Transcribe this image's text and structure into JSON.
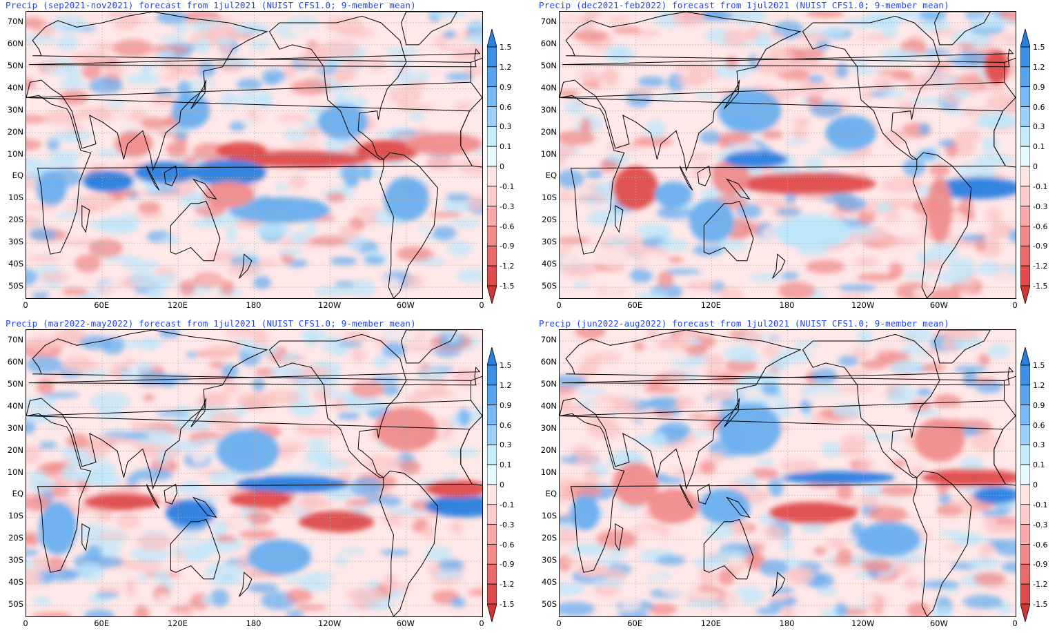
{
  "panels": [
    {
      "id": "son2021",
      "title": "Precip (sep2021-nov2021) forecast from 1jul2021 (NUIST CFS1.0; 9-member mean)"
    },
    {
      "id": "djf2022",
      "title": "Precip (dec2021-feb2022) forecast from 1jul2021 (NUIST CFS1.0; 9-member mean)"
    },
    {
      "id": "mam2022",
      "title": "Precip (mar2022-may2022) forecast from 1jul2021 (NUIST CFS1.0; 9-member mean)"
    },
    {
      "id": "jja2022",
      "title": "Precip (jun2022-aug2022) forecast from 1jul2021 (NUIST CFS1.0; 9-member mean)"
    }
  ],
  "lat_ticks": [
    "70N",
    "60N",
    "50N",
    "40N",
    "30N",
    "20N",
    "10N",
    "EQ",
    "10S",
    "20S",
    "30S",
    "40S",
    "50S"
  ],
  "lon_ticks": [
    "0",
    "60E",
    "120E",
    "180",
    "120W",
    "60W",
    "0"
  ],
  "colorbar": {
    "levels": [
      "1.5",
      "1.2",
      "0.9",
      "0.6",
      "0.3",
      "0.1",
      "0",
      "-0.1",
      "-0.3",
      "-0.6",
      "-0.9",
      "-1.2",
      "-1.5"
    ],
    "colors": [
      "#2a7fe0",
      "#3d8fe8",
      "#5aa3ef",
      "#78b8f4",
      "#9dd0f8",
      "#c4ecfb",
      "#e6fbff",
      "#ffe4e4",
      "#fdcdcd",
      "#f9a9a9",
      "#f28a8a",
      "#ea6a6a",
      "#e04c4c",
      "#d43434"
    ]
  },
  "palette": {
    "strong_wet": "#2a7fe0",
    "moderate_wet": "#6aafef",
    "weak_wet": "#bde6fa",
    "neutral": "#ffe8e8",
    "weak_dry": "#fbc4c4",
    "moderate_dry": "#f08c8c",
    "strong_dry": "#e04c4c",
    "title_color": "#1f3fff"
  }
}
